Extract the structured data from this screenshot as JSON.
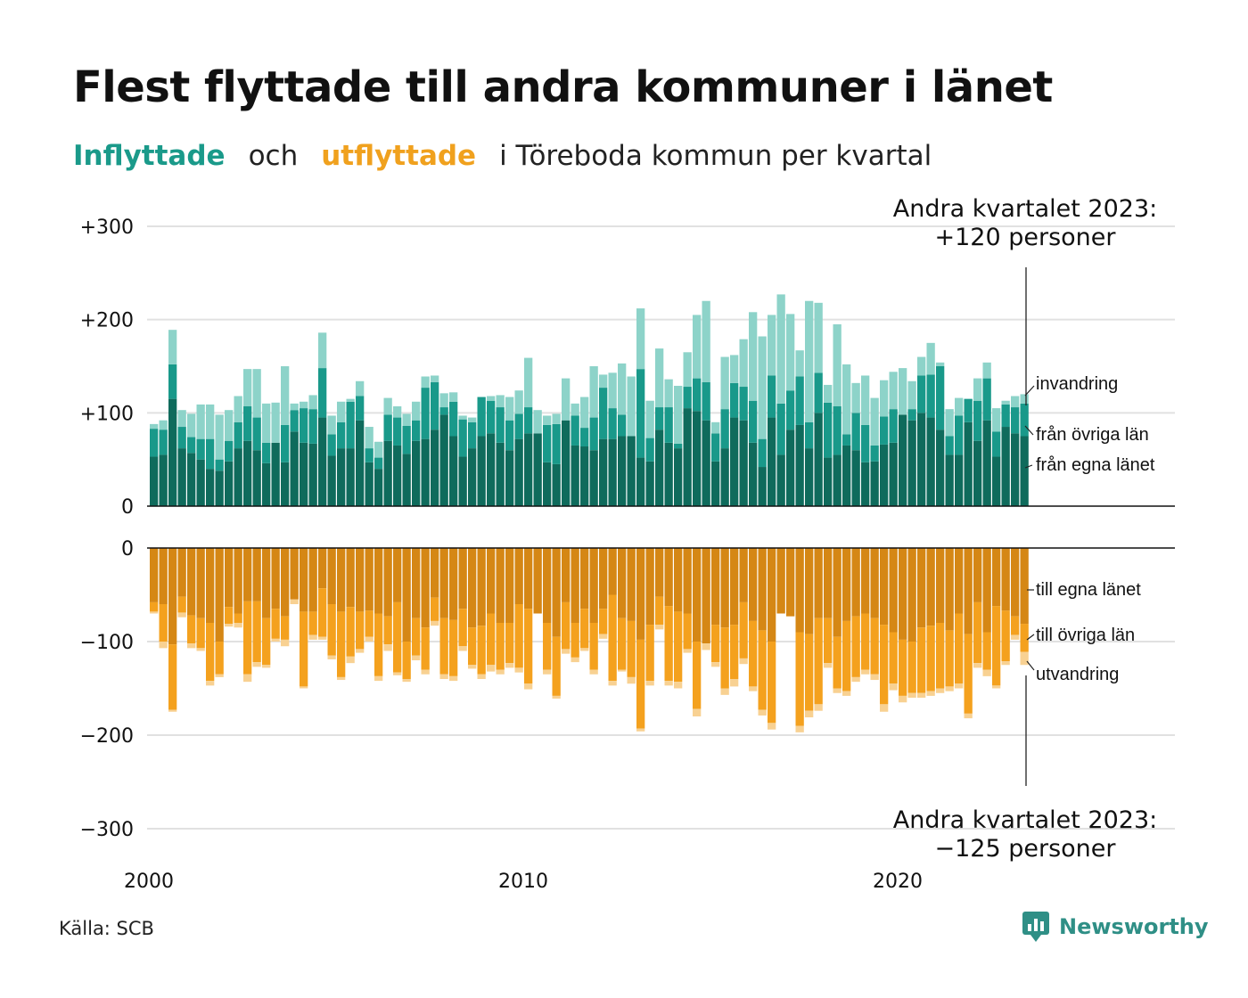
{
  "title": "Flest flyttade till andra kommuner i länet",
  "subtitle": {
    "in_word": "Inflyttade",
    "and_word": "och",
    "out_word": "utflyttade",
    "rest": "i Töreboda kommun per kvartal"
  },
  "colors": {
    "in_dark": "#0f6b5c",
    "in_mid": "#19998a",
    "in_light": "#8dd3c9",
    "out_dark": "#d58715",
    "out_mid": "#f4a11e",
    "out_light": "#f8d192",
    "grid": "#e1e1e1",
    "axis": "#111111"
  },
  "source": "Källa: SCB",
  "brand": {
    "name": "Newsworthy",
    "icon": "newsworthy-logo-icon"
  },
  "chart_data": {
    "type": "bar",
    "stacked": true,
    "x_label_ticks": [
      "2000",
      "2010",
      "2020"
    ],
    "x_start": "2000 Q1",
    "x_end": "2023 Q2",
    "grid": true,
    "top_panel": {
      "y_ticks": [
        "+300",
        "+200",
        "+100",
        "0"
      ],
      "ylim": [
        0,
        300
      ],
      "annotation": [
        "Andra kvartalet 2023:",
        "+120 personer"
      ],
      "series_labels": [
        "invandring",
        "från övriga län",
        "från egna länet"
      ]
    },
    "bottom_panel": {
      "y_ticks": [
        "0",
        "−100",
        "−200",
        "−300"
      ],
      "ylim": [
        -300,
        0
      ],
      "annotation": [
        "Andra kvartalet 2023:",
        "−125 personer"
      ],
      "series_labels": [
        "till egna länet",
        "till övriga län",
        "utvandring"
      ]
    },
    "categories": [
      "2000 Q1",
      "2000 Q2",
      "2000 Q3",
      "2000 Q4",
      "2001 Q1",
      "2001 Q2",
      "2001 Q3",
      "2001 Q4",
      "2002 Q1",
      "2002 Q2",
      "2002 Q3",
      "2002 Q4",
      "2003 Q1",
      "2003 Q2",
      "2003 Q3",
      "2003 Q4",
      "2004 Q1",
      "2004 Q2",
      "2004 Q3",
      "2004 Q4",
      "2005 Q1",
      "2005 Q2",
      "2005 Q3",
      "2005 Q4",
      "2006 Q1",
      "2006 Q2",
      "2006 Q3",
      "2006 Q4",
      "2007 Q1",
      "2007 Q2",
      "2007 Q3",
      "2007 Q4",
      "2008 Q1",
      "2008 Q2",
      "2008 Q3",
      "2008 Q4",
      "2009 Q1",
      "2009 Q2",
      "2009 Q3",
      "2009 Q4",
      "2010 Q1",
      "2010 Q2",
      "2010 Q3",
      "2010 Q4",
      "2011 Q1",
      "2011 Q2",
      "2011 Q3",
      "2011 Q4",
      "2012 Q1",
      "2012 Q2",
      "2012 Q3",
      "2012 Q4",
      "2013 Q1",
      "2013 Q2",
      "2013 Q3",
      "2013 Q4",
      "2014 Q1",
      "2014 Q2",
      "2014 Q3",
      "2014 Q4",
      "2015 Q1",
      "2015 Q2",
      "2015 Q3",
      "2015 Q4",
      "2016 Q1",
      "2016 Q2",
      "2016 Q3",
      "2016 Q4",
      "2017 Q1",
      "2017 Q2",
      "2017 Q3",
      "2017 Q4",
      "2018 Q1",
      "2018 Q2",
      "2018 Q3",
      "2018 Q4",
      "2019 Q1",
      "2019 Q2",
      "2019 Q3",
      "2019 Q4",
      "2020 Q1",
      "2020 Q2",
      "2020 Q3",
      "2020 Q4",
      "2021 Q1",
      "2021 Q2",
      "2021 Q3",
      "2021 Q4",
      "2022 Q1",
      "2022 Q2",
      "2022 Q3",
      "2022 Q4",
      "2023 Q1",
      "2023 Q2"
    ],
    "series": [
      {
        "name": "från egna länet",
        "panel": "top",
        "values": [
          53,
          55,
          115,
          62,
          57,
          50,
          40,
          38,
          48,
          62,
          70,
          60,
          46,
          68,
          47,
          80,
          68,
          67,
          95,
          54,
          62,
          62,
          92,
          47,
          40,
          70,
          65,
          56,
          70,
          72,
          82,
          98,
          75,
          53,
          62,
          75,
          78,
          68,
          60,
          72,
          78,
          78,
          47,
          45,
          92,
          65,
          64,
          60,
          72,
          72,
          75,
          75,
          52,
          48,
          82,
          68,
          62,
          105,
          102,
          92,
          48,
          62,
          95,
          92,
          68,
          42,
          95,
          55,
          82,
          87,
          62,
          100,
          52,
          55,
          65,
          60,
          47,
          48,
          66,
          68,
          98,
          92,
          100,
          95,
          82,
          55,
          55,
          90,
          70,
          92,
          53,
          85,
          78,
          75
        ]
      },
      {
        "name": "från övriga län",
        "panel": "top",
        "values": [
          30,
          27,
          37,
          23,
          17,
          22,
          32,
          12,
          22,
          28,
          37,
          35,
          22,
          0,
          40,
          23,
          37,
          37,
          53,
          23,
          28,
          50,
          26,
          15,
          12,
          28,
          30,
          30,
          22,
          55,
          51,
          8,
          37,
          40,
          28,
          42,
          35,
          38,
          32,
          27,
          28,
          0,
          40,
          43,
          0,
          32,
          20,
          35,
          55,
          33,
          23,
          0,
          95,
          25,
          24,
          38,
          5,
          23,
          35,
          41,
          30,
          42,
          37,
          36,
          45,
          30,
          45,
          55,
          42,
          52,
          28,
          43,
          59,
          52,
          12,
          40,
          40,
          17,
          30,
          36,
          0,
          12,
          40,
          46,
          68,
          20,
          42,
          25,
          43,
          45,
          27,
          24,
          28,
          35
        ]
      },
      {
        "name": "invandring",
        "panel": "top",
        "values": [
          5,
          10,
          37,
          18,
          25,
          37,
          37,
          48,
          33,
          28,
          40,
          52,
          42,
          43,
          63,
          7,
          7,
          15,
          38,
          20,
          22,
          3,
          16,
          23,
          17,
          18,
          12,
          13,
          20,
          12,
          7,
          15,
          10,
          4,
          5,
          0,
          5,
          13,
          25,
          25,
          53,
          25,
          10,
          11,
          45,
          13,
          33,
          55,
          14,
          38,
          55,
          64,
          65,
          40,
          63,
          30,
          62,
          37,
          68,
          87,
          12,
          56,
          30,
          51,
          95,
          110,
          65,
          117,
          82,
          28,
          130,
          75,
          19,
          88,
          75,
          32,
          53,
          51,
          39,
          40,
          50,
          30,
          20,
          34,
          4,
          29,
          19,
          0,
          24,
          17,
          25,
          4,
          12,
          10
        ]
      },
      {
        "name": "till egna länet",
        "panel": "bottom",
        "values": [
          58,
          60,
          103,
          52,
          72,
          75,
          80,
          100,
          63,
          70,
          57,
          57,
          75,
          65,
          73,
          55,
          68,
          68,
          43,
          60,
          68,
          63,
          68,
          67,
          70,
          73,
          58,
          100,
          75,
          85,
          53,
          75,
          77,
          65,
          85,
          83,
          70,
          80,
          80,
          60,
          65,
          70,
          80,
          95,
          58,
          80,
          65,
          80,
          65,
          50,
          75,
          78,
          98,
          82,
          52,
          62,
          68,
          70,
          100,
          102,
          82,
          85,
          82,
          58,
          78,
          88,
          100,
          70,
          73,
          90,
          92,
          75,
          75,
          95,
          78,
          73,
          70,
          75,
          82,
          90,
          98,
          100,
          85,
          83,
          80,
          88,
          70,
          92,
          58,
          90,
          62,
          67,
          73,
          81
        ]
      },
      {
        "name": "till övriga län",
        "panel": "bottom",
        "values": [
          10,
          40,
          70,
          17,
          30,
          32,
          62,
          35,
          18,
          10,
          78,
          65,
          50,
          32,
          25,
          0,
          80,
          25,
          52,
          55,
          70,
          53,
          40,
          28,
          67,
          30,
          75,
          40,
          40,
          45,
          25,
          60,
          60,
          40,
          40,
          52,
          55,
          50,
          43,
          68,
          80,
          0,
          50,
          63,
          50,
          37,
          42,
          50,
          27,
          92,
          55,
          60,
          95,
          60,
          30,
          80,
          75,
          38,
          72,
          0,
          40,
          65,
          58,
          60,
          70,
          85,
          87,
          0,
          0,
          100,
          82,
          92,
          48,
          55,
          75,
          65,
          60,
          60,
          85,
          55,
          60,
          55,
          70,
          70,
          70,
          60,
          75,
          85,
          65,
          40,
          85,
          54,
          20,
          30
        ]
      },
      {
        "name": "utvandring",
        "panel": "bottom",
        "values": [
          2,
          7,
          2,
          5,
          5,
          3,
          5,
          3,
          3,
          5,
          8,
          5,
          3,
          3,
          7,
          5,
          2,
          5,
          3,
          4,
          3,
          7,
          4,
          5,
          5,
          7,
          3,
          3,
          5,
          5,
          5,
          5,
          5,
          5,
          4,
          5,
          7,
          5,
          5,
          5,
          6,
          0,
          5,
          3,
          5,
          5,
          3,
          5,
          5,
          5,
          2,
          7,
          3,
          5,
          5,
          5,
          7,
          4,
          8,
          7,
          5,
          7,
          8,
          6,
          5,
          6,
          7,
          0,
          0,
          7,
          7,
          7,
          5,
          5,
          5,
          5,
          5,
          6,
          8,
          7,
          7,
          5,
          5,
          5,
          5,
          5,
          5,
          5,
          5,
          7,
          3,
          4,
          5,
          14
        ]
      }
    ]
  }
}
